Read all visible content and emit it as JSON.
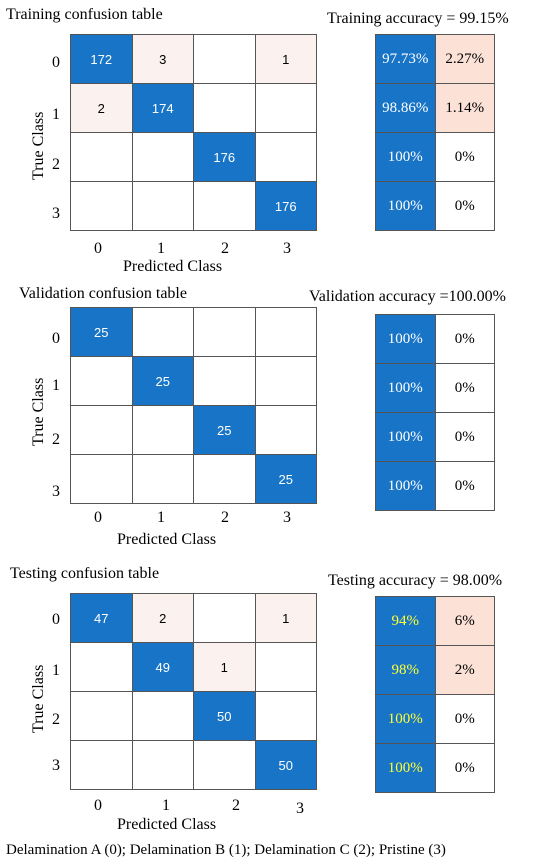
{
  "colors": {
    "diag": "#1874c7",
    "offdiag_light": "#fbf1ee",
    "acc_correct": "#1874c7",
    "acc_error_light": "#fbe1d6",
    "white": "#ffffff",
    "test_correct_text": "#ffff33"
  },
  "panels": [
    {
      "title": "Training confusion table",
      "accuracy_title": "Training accuracy = 99.15%",
      "matrix": [
        [
          172,
          3,
          null,
          1
        ],
        [
          2,
          174,
          null,
          null
        ],
        [
          null,
          null,
          176,
          null
        ],
        [
          null,
          null,
          null,
          176
        ]
      ],
      "acc_table": [
        [
          "97.73%",
          "2.27%"
        ],
        [
          "98.86%",
          "1.14%"
        ],
        [
          "100%",
          "0%"
        ],
        [
          "100%",
          "0%"
        ]
      ]
    },
    {
      "title": "Validation confusion table",
      "accuracy_title": "Validation accuracy =100.00%",
      "matrix": [
        [
          25,
          null,
          null,
          null
        ],
        [
          null,
          25,
          null,
          null
        ],
        [
          null,
          null,
          25,
          null
        ],
        [
          null,
          null,
          null,
          25
        ]
      ],
      "acc_table": [
        [
          "100%",
          "0%"
        ],
        [
          "100%",
          "0%"
        ],
        [
          "100%",
          "0%"
        ],
        [
          "100%",
          "0%"
        ]
      ]
    },
    {
      "title": "Testing confusion table",
      "accuracy_title": "Testing accuracy = 98.00%",
      "matrix": [
        [
          47,
          2,
          null,
          1
        ],
        [
          null,
          49,
          1,
          null
        ],
        [
          null,
          null,
          50,
          null
        ],
        [
          null,
          null,
          null,
          50
        ]
      ],
      "acc_table": [
        [
          "94%",
          "6%"
        ],
        [
          "98%",
          "2%"
        ],
        [
          "100%",
          "0%"
        ],
        [
          "100%",
          "0%"
        ]
      ]
    }
  ],
  "axes": {
    "ylabel": "True Class",
    "xlabel": "Predicted Class",
    "ticks": [
      "0",
      "1",
      "2",
      "3"
    ]
  },
  "caption": "Delamination A (0); Delamination B (1); Delamination C (2); Pristine (3)",
  "chart_data": [
    {
      "type": "heatmap",
      "title": "Training confusion table",
      "xlabel": "Predicted Class",
      "ylabel": "True Class",
      "x_categories": [
        "0",
        "1",
        "2",
        "3"
      ],
      "y_categories": [
        "0",
        "1",
        "2",
        "3"
      ],
      "values": [
        [
          172,
          3,
          0,
          1
        ],
        [
          2,
          174,
          0,
          0
        ],
        [
          0,
          0,
          176,
          0
        ],
        [
          0,
          0,
          0,
          176
        ]
      ]
    },
    {
      "type": "table",
      "title": "Training accuracy = 99.15%",
      "rows": [
        [
          "97.73%",
          "2.27%"
        ],
        [
          "98.86%",
          "1.14%"
        ],
        [
          "100%",
          "0%"
        ],
        [
          "100%",
          "0%"
        ]
      ]
    },
    {
      "type": "heatmap",
      "title": "Validation confusion table",
      "xlabel": "Predicted Class",
      "ylabel": "True Class",
      "x_categories": [
        "0",
        "1",
        "2",
        "3"
      ],
      "y_categories": [
        "0",
        "1",
        "2",
        "3"
      ],
      "values": [
        [
          25,
          0,
          0,
          0
        ],
        [
          0,
          25,
          0,
          0
        ],
        [
          0,
          0,
          25,
          0
        ],
        [
          0,
          0,
          0,
          25
        ]
      ]
    },
    {
      "type": "table",
      "title": "Validation accuracy =100.00%",
      "rows": [
        [
          "100%",
          "0%"
        ],
        [
          "100%",
          "0%"
        ],
        [
          "100%",
          "0%"
        ],
        [
          "100%",
          "0%"
        ]
      ]
    },
    {
      "type": "heatmap",
      "title": "Testing confusion table",
      "xlabel": "Predicted Class",
      "ylabel": "True Class",
      "x_categories": [
        "0",
        "1",
        "2",
        "3"
      ],
      "y_categories": [
        "0",
        "1",
        "2",
        "3"
      ],
      "values": [
        [
          47,
          2,
          0,
          1
        ],
        [
          0,
          49,
          1,
          0
        ],
        [
          0,
          0,
          50,
          0
        ],
        [
          0,
          0,
          0,
          50
        ]
      ]
    },
    {
      "type": "table",
      "title": "Testing accuracy = 98.00%",
      "rows": [
        [
          "94%",
          "6%"
        ],
        [
          "98%",
          "2%"
        ],
        [
          "100%",
          "0%"
        ],
        [
          "100%",
          "0%"
        ]
      ]
    }
  ]
}
